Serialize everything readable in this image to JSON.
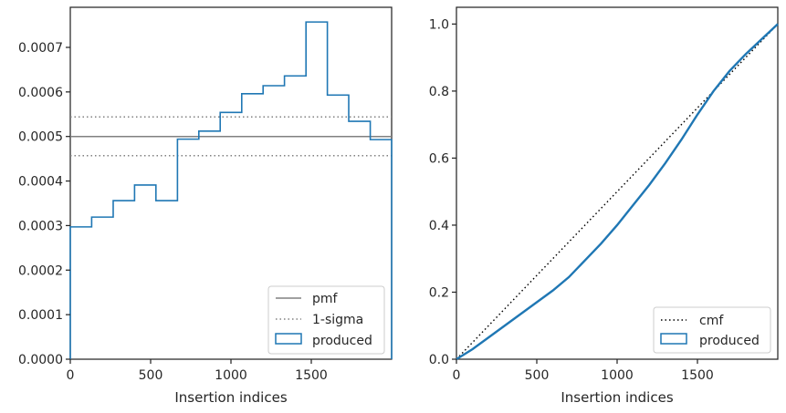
{
  "chart_data": [
    {
      "type": "step",
      "xlabel": "Insertion indices",
      "ylabel": "",
      "xlim": [
        0,
        2000
      ],
      "ylim": [
        0,
        0.00079
      ],
      "xticks": [
        0,
        500,
        1000,
        1500
      ],
      "yticks": [
        0.0,
        0.0001,
        0.0002,
        0.0003,
        0.0004,
        0.0005,
        0.0006,
        0.0007
      ],
      "ytick_labels": [
        "0.0000",
        "0.0001",
        "0.0002",
        "0.0003",
        "0.0004",
        "0.0005",
        "0.0006",
        "0.0007"
      ],
      "bin_edges": [
        0,
        133,
        267,
        400,
        533,
        667,
        800,
        933,
        1067,
        1200,
        1333,
        1467,
        1600,
        1733,
        1867,
        2000
      ],
      "values": [
        0.000297,
        0.000319,
        0.000356,
        0.000391,
        0.000356,
        0.000494,
        0.000512,
        0.000554,
        0.000596,
        0.000614,
        0.000636,
        0.000757,
        0.000593,
        0.000534,
        0.000493
      ],
      "reference_lines": [
        {
          "name": "pmf",
          "y": 0.0005,
          "style": "solid",
          "color": "#808080"
        },
        {
          "name": "1-sigma",
          "y": 0.000544,
          "style": "dotted",
          "color": "#808080"
        },
        {
          "name": "1-sigma",
          "y": 0.000457,
          "style": "dotted",
          "color": "#808080"
        }
      ],
      "series_color": "#1f77b4",
      "legend": {
        "placement": "lower-right",
        "entries": [
          "pmf",
          "1-sigma",
          "produced"
        ]
      }
    },
    {
      "type": "line",
      "xlabel": "Insertion indices",
      "ylabel": "",
      "xlim": [
        0,
        2000
      ],
      "ylim": [
        0,
        1.05
      ],
      "xticks": [
        0,
        500,
        1000,
        1500
      ],
      "yticks": [
        0.0,
        0.2,
        0.4,
        0.6,
        0.8,
        1.0
      ],
      "ytick_labels": [
        "0.0",
        "0.2",
        "0.4",
        "0.6",
        "0.8",
        "1.0"
      ],
      "series": [
        {
          "name": "cmf",
          "style": "dotted",
          "color": "#000000",
          "x": [
            0,
            2000
          ],
          "y": [
            0,
            1
          ]
        },
        {
          "name": "produced",
          "style": "solid",
          "color": "#1f77b4",
          "x": [
            0,
            100,
            200,
            300,
            400,
            500,
            600,
            700,
            800,
            900,
            1000,
            1100,
            1200,
            1300,
            1400,
            1500,
            1600,
            1700,
            1800,
            1900,
            2000
          ],
          "y": [
            0,
            0.03,
            0.065,
            0.1,
            0.135,
            0.17,
            0.205,
            0.245,
            0.295,
            0.345,
            0.4,
            0.46,
            0.52,
            0.585,
            0.655,
            0.73,
            0.8,
            0.86,
            0.91,
            0.955,
            1.0
          ]
        }
      ],
      "legend": {
        "placement": "lower-right",
        "entries": [
          "cmf",
          "produced"
        ]
      }
    }
  ]
}
